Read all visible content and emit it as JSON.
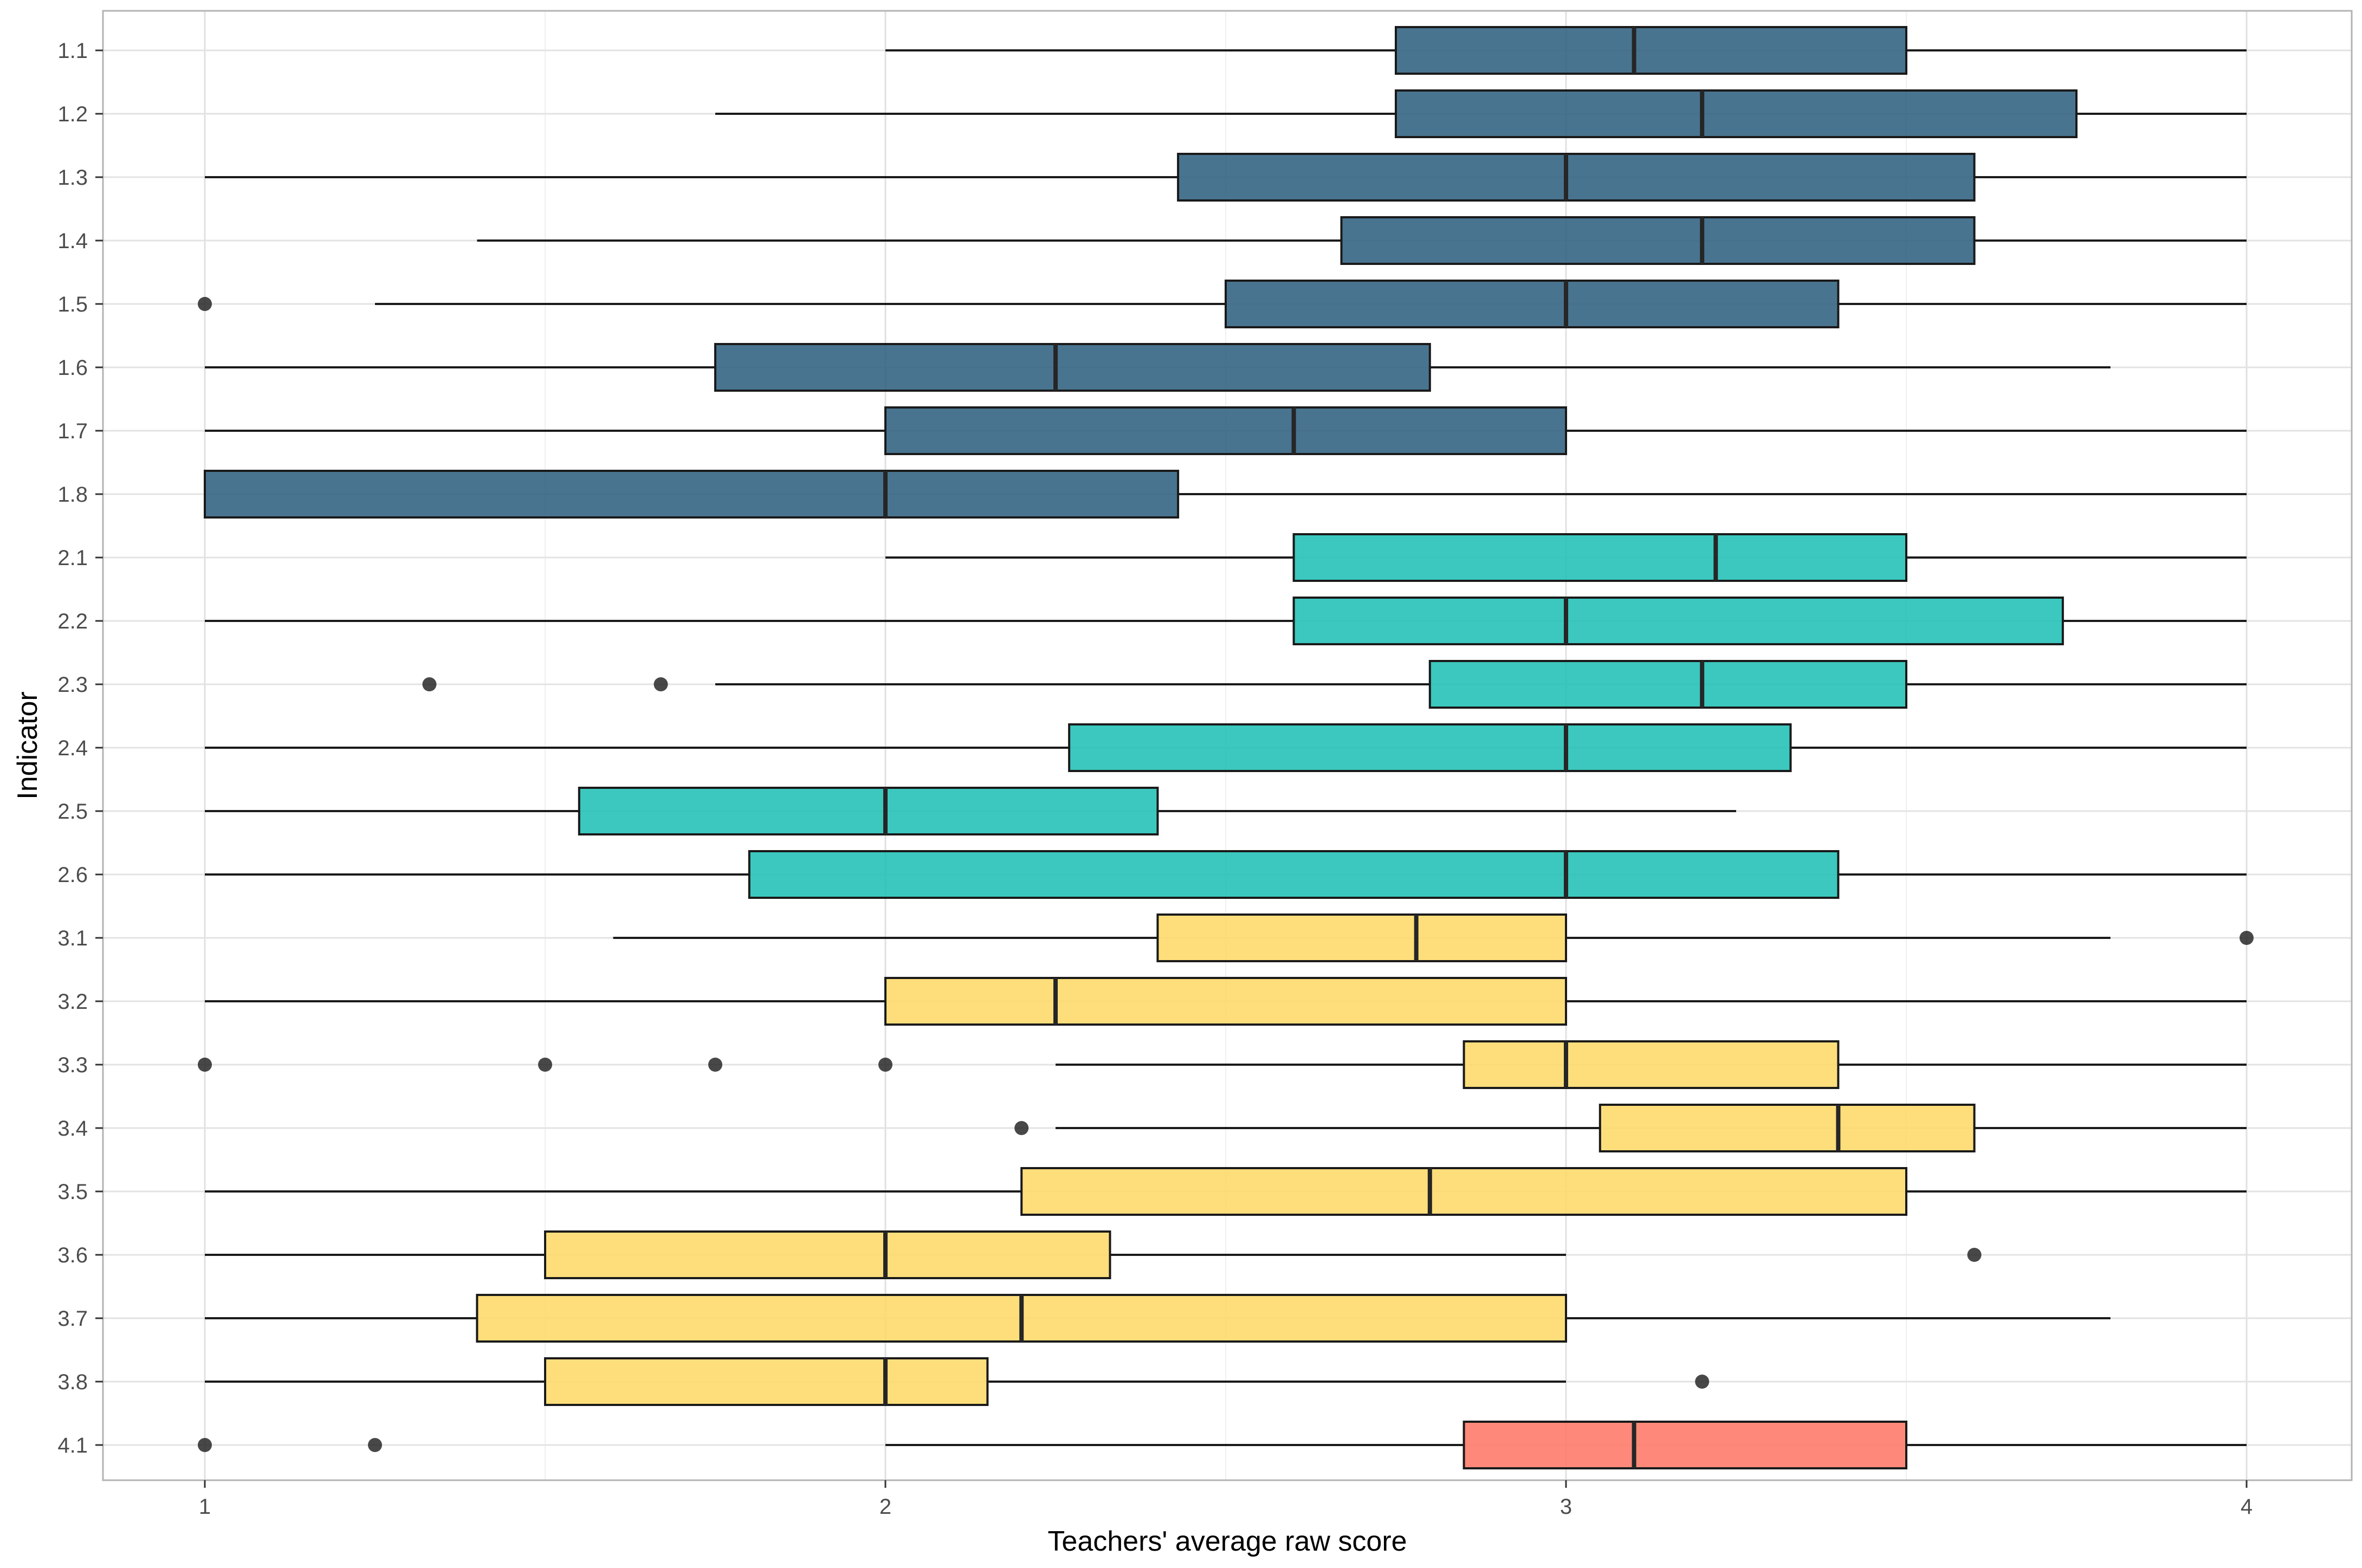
{
  "chart_data": {
    "type": "boxplot",
    "orientation": "horizontal",
    "xlabel": "Teachers' average raw score",
    "ylabel": "Indicator",
    "xlim": [
      0.85,
      4.15
    ],
    "x_ticks": [
      1,
      2,
      3,
      4
    ],
    "grid": true,
    "legend": "none",
    "group_colors": {
      "1": "#2e5f7e",
      "2": "#1fc0b4",
      "3": "#fed967",
      "4": "#fe7766"
    },
    "categories": [
      "1.1",
      "1.2",
      "1.3",
      "1.4",
      "1.5",
      "1.6",
      "1.7",
      "1.8",
      "2.1",
      "2.2",
      "2.3",
      "2.4",
      "2.5",
      "2.6",
      "3.1",
      "3.2",
      "3.3",
      "3.4",
      "3.5",
      "3.6",
      "3.7",
      "3.8",
      "4.1"
    ],
    "boxes": [
      {
        "label": "1.1",
        "group": "1",
        "whisker_low": 2.0,
        "q1": 2.75,
        "median": 3.1,
        "q3": 3.5,
        "whisker_high": 4.0,
        "outliers": []
      },
      {
        "label": "1.2",
        "group": "1",
        "whisker_low": 1.75,
        "q1": 2.75,
        "median": 3.2,
        "q3": 3.75,
        "whisker_high": 4.0,
        "outliers": []
      },
      {
        "label": "1.3",
        "group": "1",
        "whisker_low": 1.0,
        "q1": 2.43,
        "median": 3.0,
        "q3": 3.6,
        "whisker_high": 4.0,
        "outliers": []
      },
      {
        "label": "1.4",
        "group": "1",
        "whisker_low": 1.4,
        "q1": 2.67,
        "median": 3.2,
        "q3": 3.6,
        "whisker_high": 4.0,
        "outliers": []
      },
      {
        "label": "1.5",
        "group": "1",
        "whisker_low": 1.25,
        "q1": 2.5,
        "median": 3.0,
        "q3": 3.4,
        "whisker_high": 4.0,
        "outliers": [
          1.0
        ]
      },
      {
        "label": "1.6",
        "group": "1",
        "whisker_low": 1.0,
        "q1": 1.75,
        "median": 2.25,
        "q3": 2.8,
        "whisker_high": 3.8,
        "outliers": []
      },
      {
        "label": "1.7",
        "group": "1",
        "whisker_low": 1.0,
        "q1": 2.0,
        "median": 2.6,
        "q3": 3.0,
        "whisker_high": 4.0,
        "outliers": []
      },
      {
        "label": "1.8",
        "group": "1",
        "whisker_low": 1.0,
        "q1": 1.0,
        "median": 2.0,
        "q3": 2.43,
        "whisker_high": 4.0,
        "outliers": []
      },
      {
        "label": "2.1",
        "group": "2",
        "whisker_low": 2.0,
        "q1": 2.6,
        "median": 3.22,
        "q3": 3.5,
        "whisker_high": 4.0,
        "outliers": []
      },
      {
        "label": "2.2",
        "group": "2",
        "whisker_low": 1.0,
        "q1": 2.6,
        "median": 3.0,
        "q3": 3.73,
        "whisker_high": 4.0,
        "outliers": []
      },
      {
        "label": "2.3",
        "group": "2",
        "whisker_low": 1.75,
        "q1": 2.8,
        "median": 3.2,
        "q3": 3.5,
        "whisker_high": 4.0,
        "outliers": [
          1.33,
          1.67
        ]
      },
      {
        "label": "2.4",
        "group": "2",
        "whisker_low": 1.0,
        "q1": 2.27,
        "median": 3.0,
        "q3": 3.33,
        "whisker_high": 4.0,
        "outliers": []
      },
      {
        "label": "2.5",
        "group": "2",
        "whisker_low": 1.0,
        "q1": 1.55,
        "median": 2.0,
        "q3": 2.4,
        "whisker_high": 3.25,
        "outliers": []
      },
      {
        "label": "2.6",
        "group": "2",
        "whisker_low": 1.0,
        "q1": 1.8,
        "median": 3.0,
        "q3": 3.4,
        "whisker_high": 4.0,
        "outliers": []
      },
      {
        "label": "3.1",
        "group": "3",
        "whisker_low": 1.6,
        "q1": 2.4,
        "median": 2.78,
        "q3": 3.0,
        "whisker_high": 3.8,
        "outliers": [
          4.0
        ]
      },
      {
        "label": "3.2",
        "group": "3",
        "whisker_low": 1.0,
        "q1": 2.0,
        "median": 2.25,
        "q3": 3.0,
        "whisker_high": 4.0,
        "outliers": []
      },
      {
        "label": "3.3",
        "group": "3",
        "whisker_low": 2.25,
        "q1": 2.85,
        "median": 3.0,
        "q3": 3.4,
        "whisker_high": 4.0,
        "outliers": [
          1.0,
          1.5,
          1.75,
          2.0
        ]
      },
      {
        "label": "3.4",
        "group": "3",
        "whisker_low": 2.25,
        "q1": 3.05,
        "median": 3.4,
        "q3": 3.6,
        "whisker_high": 4.0,
        "outliers": [
          2.2
        ]
      },
      {
        "label": "3.5",
        "group": "3",
        "whisker_low": 1.0,
        "q1": 2.2,
        "median": 2.8,
        "q3": 3.5,
        "whisker_high": 4.0,
        "outliers": []
      },
      {
        "label": "3.6",
        "group": "3",
        "whisker_low": 1.0,
        "q1": 1.5,
        "median": 2.0,
        "q3": 2.33,
        "whisker_high": 3.0,
        "outliers": [
          3.6
        ]
      },
      {
        "label": "3.7",
        "group": "3",
        "whisker_low": 1.0,
        "q1": 1.4,
        "median": 2.2,
        "q3": 3.0,
        "whisker_high": 3.8,
        "outliers": []
      },
      {
        "label": "3.8",
        "group": "3",
        "whisker_low": 1.0,
        "q1": 1.5,
        "median": 2.0,
        "q3": 2.15,
        "whisker_high": 3.0,
        "outliers": [
          3.2
        ]
      },
      {
        "label": "4.1",
        "group": "4",
        "whisker_low": 2.0,
        "q1": 2.85,
        "median": 3.1,
        "q3": 3.5,
        "whisker_high": 4.0,
        "outliers": [
          1.0,
          1.25
        ]
      }
    ]
  }
}
